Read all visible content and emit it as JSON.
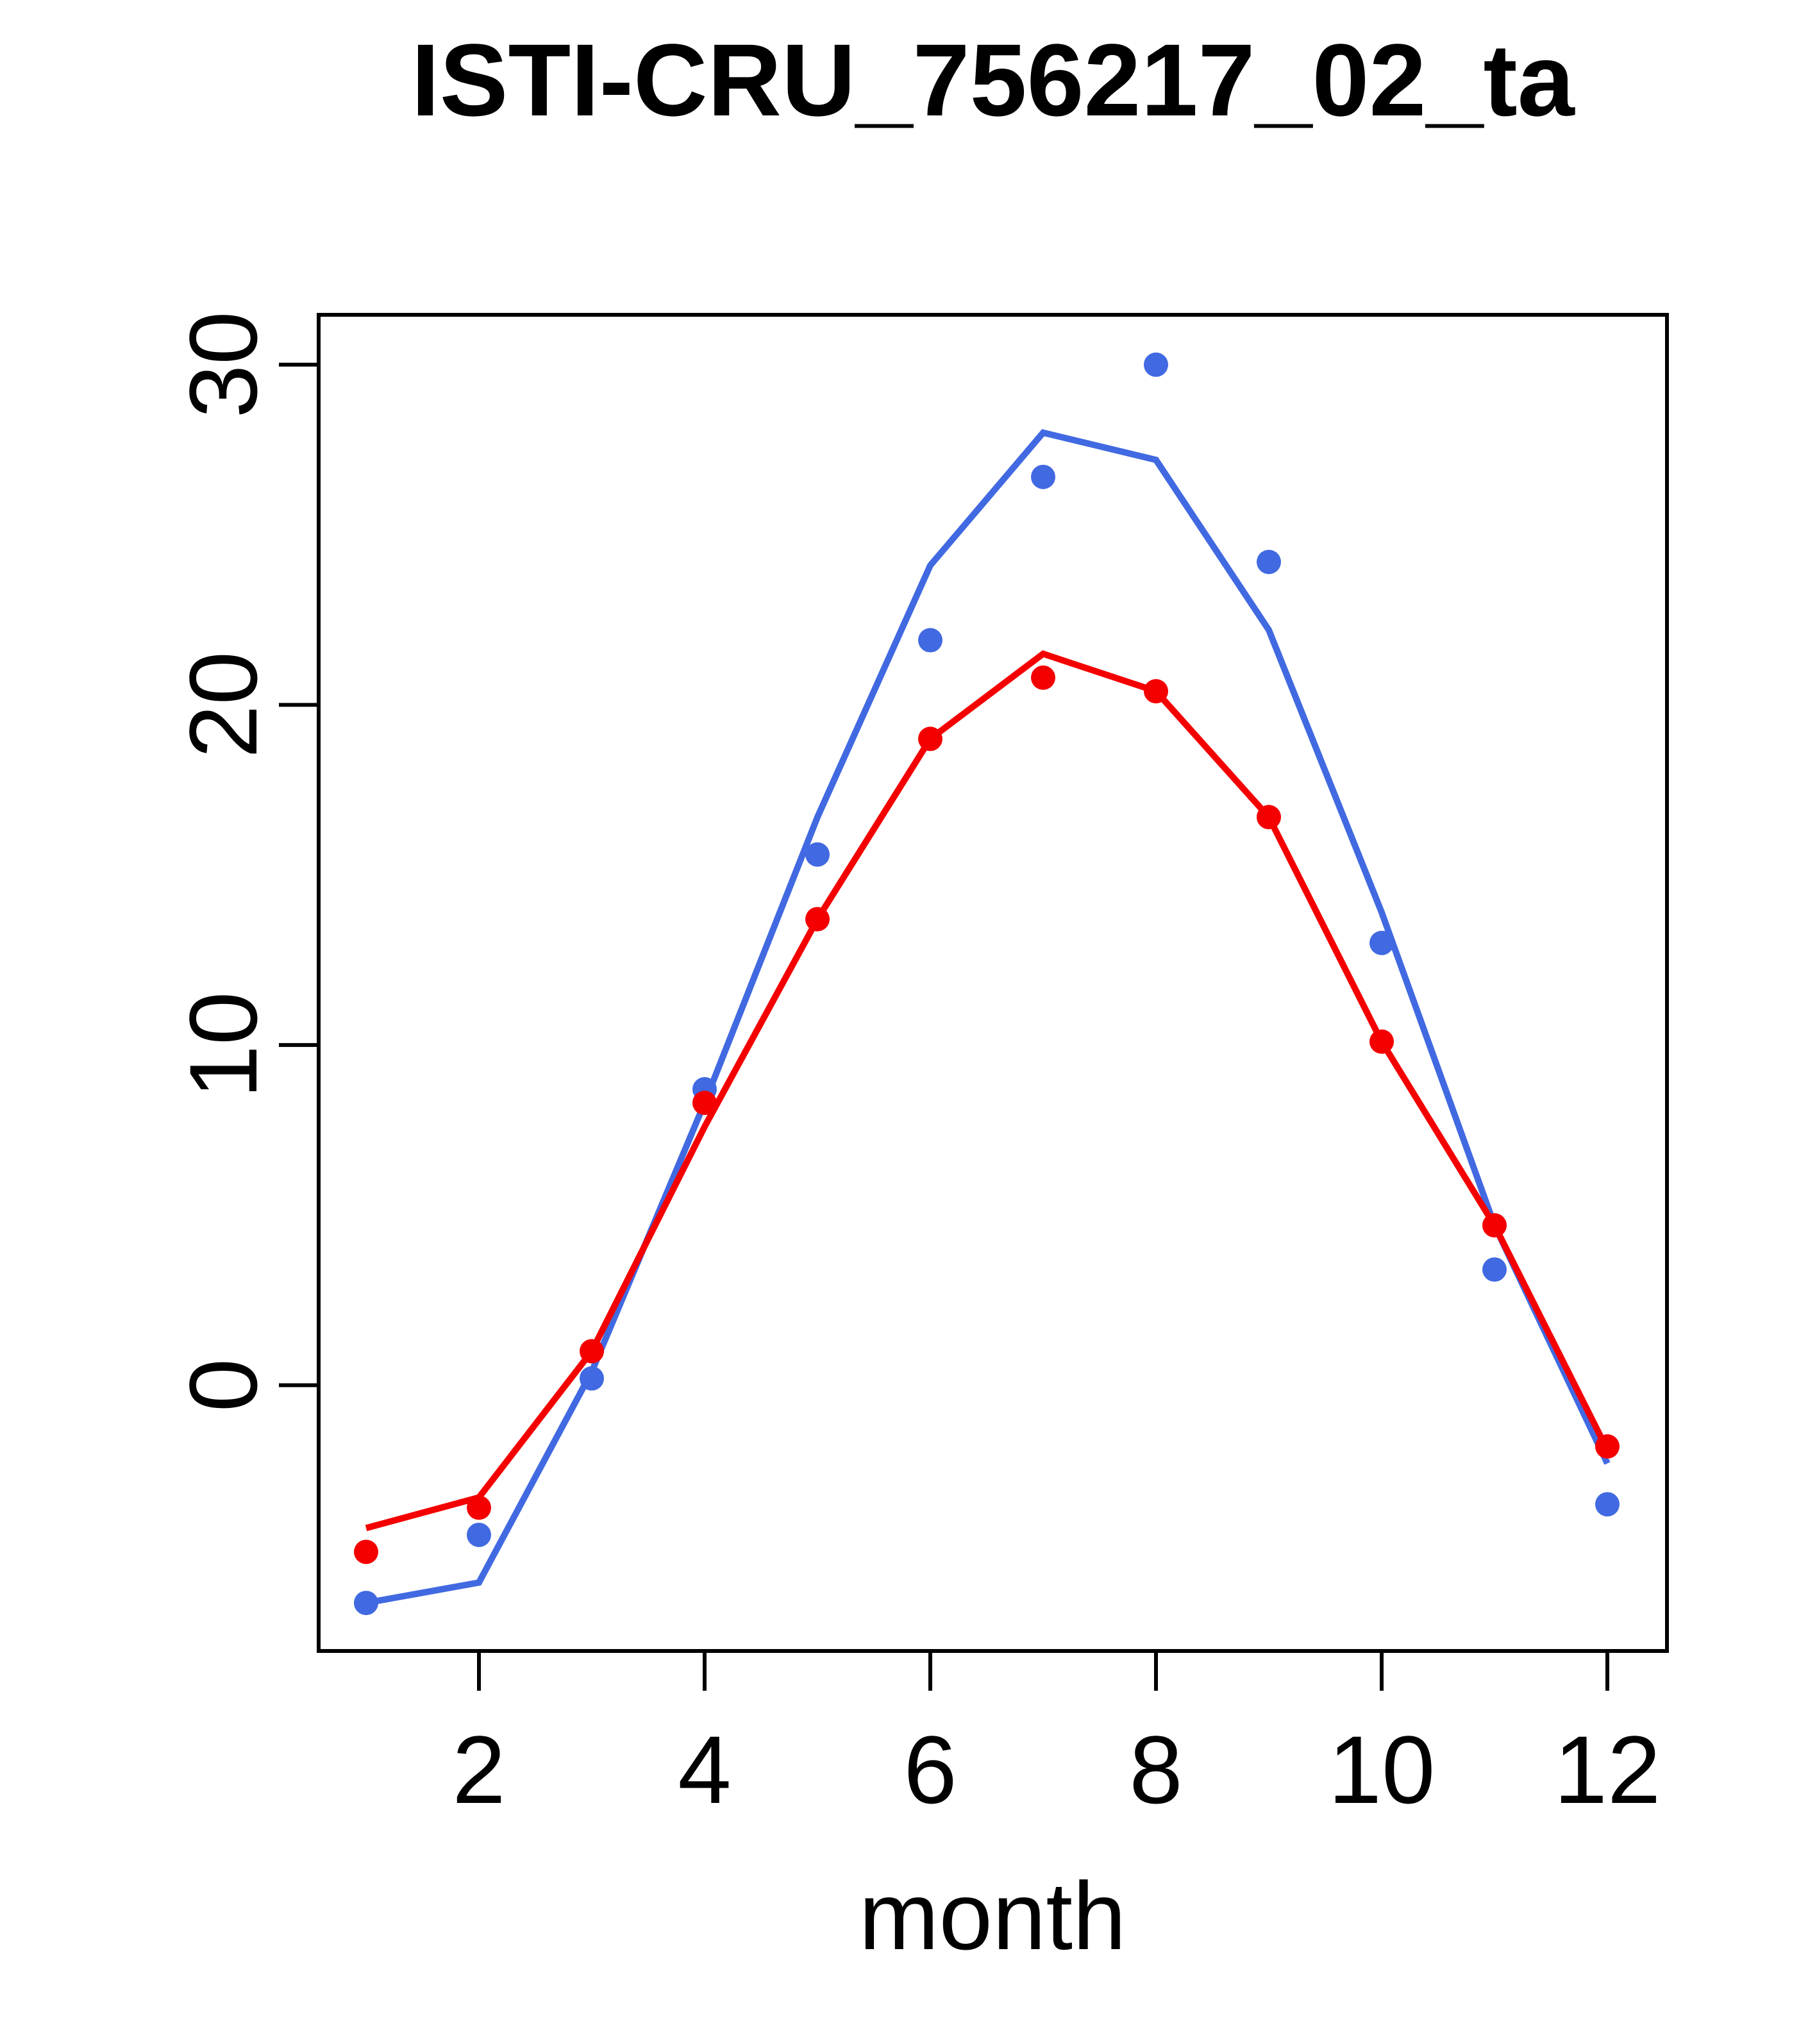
{
  "title": "ISTI-CRU_756217_02_ta",
  "axes": {
    "xlabel": "month",
    "x_tick_labels": [
      "2",
      "4",
      "6",
      "8",
      "10",
      "12"
    ],
    "y_tick_labels": [
      "0",
      "10",
      "20",
      "30"
    ]
  },
  "colors": {
    "blue_series": "#4169E1",
    "red_series": "#F40000",
    "axis": "#000000",
    "background": "#FFFFFF"
  },
  "chart_data": {
    "type": "line",
    "title": "ISTI-CRU_756217_02_ta",
    "xlabel": "month",
    "ylabel": "",
    "x": [
      1,
      2,
      3,
      4,
      5,
      6,
      7,
      8,
      9,
      10,
      11,
      12
    ],
    "x_ticks": [
      2,
      4,
      6,
      8,
      10,
      12
    ],
    "y_ticks": [
      0,
      10,
      20,
      30
    ],
    "xlim": [
      0.56,
      12.53
    ],
    "ylim": [
      -7.8,
      31.5
    ],
    "grid": false,
    "legend": "none",
    "series": [
      {
        "name": "blue-line",
        "style": "line",
        "color": "#4169E1",
        "values": [
          -6.4,
          -5.8,
          0.4,
          8.3,
          16.7,
          24.1,
          28.0,
          27.2,
          22.2,
          13.9,
          4.7,
          -2.3
        ]
      },
      {
        "name": "red-line",
        "style": "line",
        "color": "#F40000",
        "values": [
          -4.2,
          -3.3,
          1.0,
          7.6,
          13.7,
          19.0,
          21.5,
          20.4,
          16.7,
          10.1,
          4.7,
          -1.9
        ]
      },
      {
        "name": "blue-points",
        "style": "points",
        "color": "#4169E1",
        "values": [
          -6.4,
          -4.4,
          0.2,
          8.7,
          15.6,
          21.9,
          26.7,
          30.0,
          24.2,
          13.0,
          3.4,
          -3.5
        ]
      },
      {
        "name": "red-points",
        "style": "points",
        "color": "#F40000",
        "values": [
          -4.9,
          -3.6,
          1.0,
          8.3,
          13.7,
          19.0,
          20.8,
          20.4,
          16.7,
          10.1,
          4.7,
          -1.8
        ]
      }
    ]
  }
}
